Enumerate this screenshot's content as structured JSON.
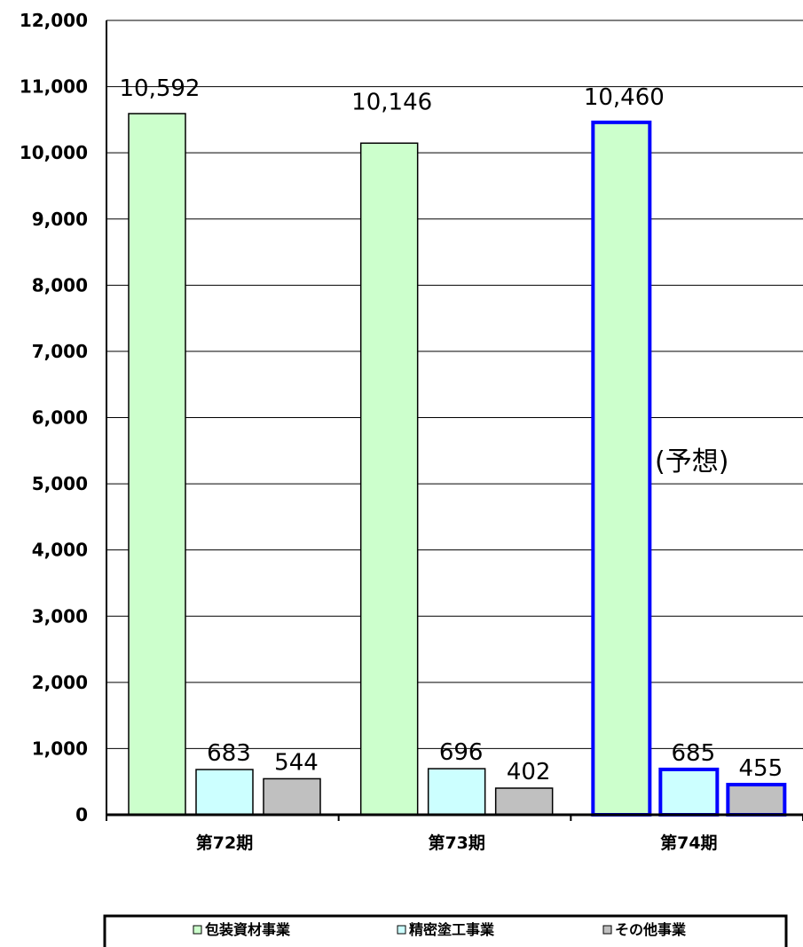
{
  "chart_data": {
    "type": "bar",
    "categories": [
      "第72期",
      "第73期",
      "第74期"
    ],
    "series": [
      {
        "name": "包装資材事業",
        "values": [
          10592,
          10146,
          10460
        ],
        "fill": "#ccffcc",
        "stroke": "#000000"
      },
      {
        "name": "精密塗工事業",
        "values": [
          683,
          696,
          685
        ],
        "fill": "#ccffff",
        "stroke": "#000000"
      },
      {
        "name": "その他事業",
        "values": [
          544,
          402,
          455
        ],
        "fill": "#c0c0c0",
        "stroke": "#000000"
      }
    ],
    "data_labels": [
      [
        "10,592",
        "10,146",
        "10,460"
      ],
      [
        "683",
        "696",
        "685"
      ],
      [
        "544",
        "402",
        "455"
      ]
    ],
    "y_ticks": [
      "0",
      "1,000",
      "2,000",
      "3,000",
      "4,000",
      "5,000",
      "6,000",
      "7,000",
      "8,000",
      "9,000",
      "10,000",
      "11,000",
      "12,000"
    ],
    "ylim": [
      0,
      12000
    ],
    "grid": true,
    "legend_position": "bottom",
    "forecast_category_index": 2,
    "forecast_stroke": "#0000ff",
    "annotation": "(予想)"
  }
}
